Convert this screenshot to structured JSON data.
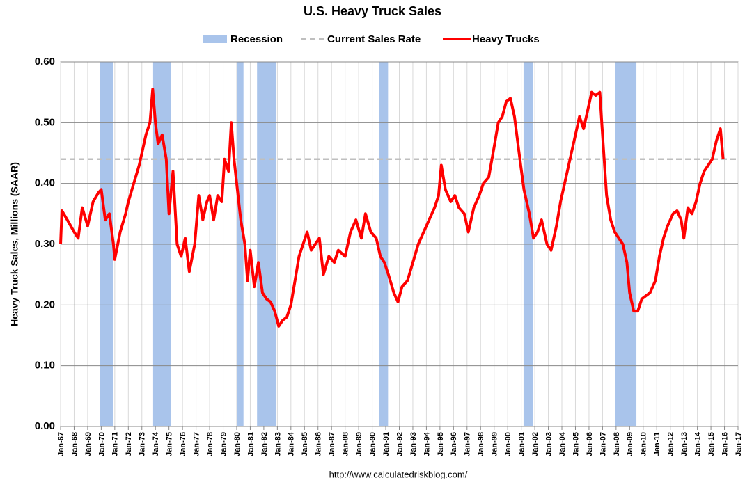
{
  "chart_data": {
    "type": "line",
    "title": "U.S. Heavy Truck Sales",
    "y_label": "Heavy Truck Sales, Millions (SAAR)",
    "source": "http://www.calculatedriskblog.com/",
    "recession_name": "Recession",
    "recession_color": "#a9c4eb",
    "recessions": [
      [
        1969.92,
        1970.88
      ],
      [
        1973.83,
        1975.17
      ],
      [
        1980.0,
        1980.5
      ],
      [
        1981.5,
        1982.88
      ],
      [
        1990.5,
        1991.17
      ],
      [
        2001.17,
        2001.88
      ],
      [
        2007.92,
        2009.5
      ]
    ],
    "reference_line": {
      "name": "Current Sales Rate",
      "value": 0.44,
      "color": "#bfbfbf"
    },
    "x": [
      1967.0,
      1967.1,
      1967.5,
      1968.0,
      1968.3,
      1968.6,
      1969.0,
      1969.4,
      1969.8,
      1970.0,
      1970.3,
      1970.6,
      1970.9,
      1971.0,
      1971.4,
      1971.8,
      1972.0,
      1972.4,
      1972.8,
      1973.0,
      1973.3,
      1973.6,
      1973.8,
      1974.0,
      1974.2,
      1974.5,
      1974.8,
      1975.0,
      1975.3,
      1975.6,
      1975.9,
      1976.2,
      1976.5,
      1976.9,
      1977.2,
      1977.5,
      1977.8,
      1978.0,
      1978.3,
      1978.6,
      1978.9,
      1979.1,
      1979.4,
      1979.6,
      1979.8,
      1980.1,
      1980.3,
      1980.6,
      1980.8,
      1981.0,
      1981.3,
      1981.6,
      1981.9,
      1982.2,
      1982.5,
      1982.8,
      1983.1,
      1983.4,
      1983.7,
      1984.0,
      1984.3,
      1984.6,
      1984.9,
      1985.2,
      1985.5,
      1985.8,
      1986.1,
      1986.4,
      1986.8,
      1987.2,
      1987.5,
      1988.0,
      1988.4,
      1988.8,
      1989.2,
      1989.5,
      1989.9,
      1990.3,
      1990.6,
      1990.9,
      1991.2,
      1991.6,
      1991.9,
      1992.2,
      1992.6,
      1993.0,
      1993.4,
      1993.8,
      1994.2,
      1994.6,
      1994.9,
      1995.1,
      1995.4,
      1995.8,
      1996.1,
      1996.4,
      1996.8,
      1997.1,
      1997.5,
      1997.9,
      1998.2,
      1998.6,
      1999.0,
      1999.3,
      1999.6,
      1999.9,
      2000.2,
      2000.5,
      2000.9,
      2001.2,
      2001.6,
      2001.9,
      2002.2,
      2002.5,
      2002.9,
      2003.2,
      2003.6,
      2003.9,
      2004.3,
      2004.7,
      2005.0,
      2005.3,
      2005.6,
      2005.9,
      2006.2,
      2006.5,
      2006.8,
      2007.0,
      2007.3,
      2007.6,
      2007.9,
      2008.2,
      2008.5,
      2008.8,
      2009.0,
      2009.3,
      2009.6,
      2009.9,
      2010.2,
      2010.5,
      2010.9,
      2011.2,
      2011.5,
      2011.8,
      2012.2,
      2012.5,
      2012.8,
      2013.0,
      2013.3,
      2013.6,
      2013.9,
      2014.2,
      2014.5,
      2014.8,
      2015.1,
      2015.4,
      2015.7,
      2015.9
    ],
    "series": [
      {
        "name": "Heavy Trucks",
        "color": "#ff0000",
        "values": [
          0.3,
          0.355,
          0.34,
          0.32,
          0.31,
          0.36,
          0.33,
          0.37,
          0.385,
          0.39,
          0.34,
          0.35,
          0.3,
          0.275,
          0.32,
          0.35,
          0.37,
          0.4,
          0.43,
          0.45,
          0.48,
          0.5,
          0.555,
          0.5,
          0.465,
          0.48,
          0.44,
          0.35,
          0.42,
          0.3,
          0.28,
          0.31,
          0.255,
          0.3,
          0.38,
          0.34,
          0.37,
          0.38,
          0.34,
          0.38,
          0.37,
          0.44,
          0.42,
          0.5,
          0.44,
          0.38,
          0.34,
          0.3,
          0.24,
          0.29,
          0.23,
          0.27,
          0.22,
          0.21,
          0.205,
          0.19,
          0.165,
          0.175,
          0.18,
          0.2,
          0.24,
          0.28,
          0.3,
          0.32,
          0.29,
          0.3,
          0.31,
          0.25,
          0.28,
          0.27,
          0.29,
          0.28,
          0.32,
          0.34,
          0.31,
          0.35,
          0.32,
          0.31,
          0.28,
          0.27,
          0.25,
          0.22,
          0.205,
          0.23,
          0.24,
          0.27,
          0.3,
          0.32,
          0.34,
          0.36,
          0.38,
          0.43,
          0.39,
          0.37,
          0.38,
          0.36,
          0.35,
          0.32,
          0.36,
          0.38,
          0.4,
          0.41,
          0.46,
          0.5,
          0.51,
          0.535,
          0.54,
          0.51,
          0.44,
          0.39,
          0.35,
          0.31,
          0.32,
          0.34,
          0.3,
          0.29,
          0.33,
          0.37,
          0.41,
          0.45,
          0.48,
          0.51,
          0.49,
          0.52,
          0.55,
          0.545,
          0.55,
          0.48,
          0.38,
          0.34,
          0.32,
          0.31,
          0.3,
          0.27,
          0.22,
          0.19,
          0.19,
          0.21,
          0.215,
          0.22,
          0.24,
          0.28,
          0.31,
          0.33,
          0.35,
          0.355,
          0.34,
          0.31,
          0.36,
          0.35,
          0.37,
          0.4,
          0.42,
          0.43,
          0.44,
          0.47,
          0.49,
          0.44
        ]
      }
    ],
    "xlim": [
      1967,
      2017
    ],
    "xticks": [
      {
        "value": 1967,
        "label": "Jan-67"
      },
      {
        "value": 1968,
        "label": "Jan-68"
      },
      {
        "value": 1969,
        "label": "Jan-69"
      },
      {
        "value": 1970,
        "label": "Jan-70"
      },
      {
        "value": 1971,
        "label": "Jan-71"
      },
      {
        "value": 1972,
        "label": "Jan-72"
      },
      {
        "value": 1973,
        "label": "Jan-73"
      },
      {
        "value": 1974,
        "label": "Jan-74"
      },
      {
        "value": 1975,
        "label": "Jan-75"
      },
      {
        "value": 1976,
        "label": "Jan-76"
      },
      {
        "value": 1977,
        "label": "Jan-77"
      },
      {
        "value": 1978,
        "label": "Jan-78"
      },
      {
        "value": 1979,
        "label": "Jan-79"
      },
      {
        "value": 1980,
        "label": "Jan-80"
      },
      {
        "value": 1981,
        "label": "Jan-81"
      },
      {
        "value": 1982,
        "label": "Jan-82"
      },
      {
        "value": 1983,
        "label": "Jan-83"
      },
      {
        "value": 1984,
        "label": "Jan-84"
      },
      {
        "value": 1985,
        "label": "Jan-85"
      },
      {
        "value": 1986,
        "label": "Jan-86"
      },
      {
        "value": 1987,
        "label": "Jan-87"
      },
      {
        "value": 1988,
        "label": "Jan-88"
      },
      {
        "value": 1989,
        "label": "Jan-89"
      },
      {
        "value": 1990,
        "label": "Jan-90"
      },
      {
        "value": 1991,
        "label": "Jan-91"
      },
      {
        "value": 1992,
        "label": "Jan-92"
      },
      {
        "value": 1993,
        "label": "Jan-93"
      },
      {
        "value": 1994,
        "label": "Jan-94"
      },
      {
        "value": 1995,
        "label": "Jan-95"
      },
      {
        "value": 1996,
        "label": "Jan-96"
      },
      {
        "value": 1997,
        "label": "Jan-97"
      },
      {
        "value": 1998,
        "label": "Jan-98"
      },
      {
        "value": 1999,
        "label": "Jan-99"
      },
      {
        "value": 2000,
        "label": "Jan-00"
      },
      {
        "value": 2001,
        "label": "Jan-01"
      },
      {
        "value": 2002,
        "label": "Jan-02"
      },
      {
        "value": 2003,
        "label": "Jan-03"
      },
      {
        "value": 2004,
        "label": "Jan-04"
      },
      {
        "value": 2005,
        "label": "Jan-05"
      },
      {
        "value": 2006,
        "label": "Jan-06"
      },
      {
        "value": 2007,
        "label": "Jan-07"
      },
      {
        "value": 2008,
        "label": "Jan-08"
      },
      {
        "value": 2009,
        "label": "Jan-09"
      },
      {
        "value": 2010,
        "label": "Jan-10"
      },
      {
        "value": 2011,
        "label": "Jan-11"
      },
      {
        "value": 2012,
        "label": "Jan-12"
      },
      {
        "value": 2013,
        "label": "Jan-13"
      },
      {
        "value": 2014,
        "label": "Jan-14"
      },
      {
        "value": 2015,
        "label": "Jan-15"
      },
      {
        "value": 2016,
        "label": "Jan-16"
      },
      {
        "value": 2017,
        "label": "Jan-17"
      }
    ],
    "ylim": [
      0,
      0.6
    ],
    "yticks": [
      {
        "value": 0,
        "label": "0.00"
      },
      {
        "value": 0.1,
        "label": "0.10"
      },
      {
        "value": 0.2,
        "label": "0.20"
      },
      {
        "value": 0.3,
        "label": "0.30"
      },
      {
        "value": 0.4,
        "label": "0.40"
      },
      {
        "value": 0.5,
        "label": "0.50"
      },
      {
        "value": 0.6,
        "label": "0.60"
      }
    ],
    "grid": true
  }
}
